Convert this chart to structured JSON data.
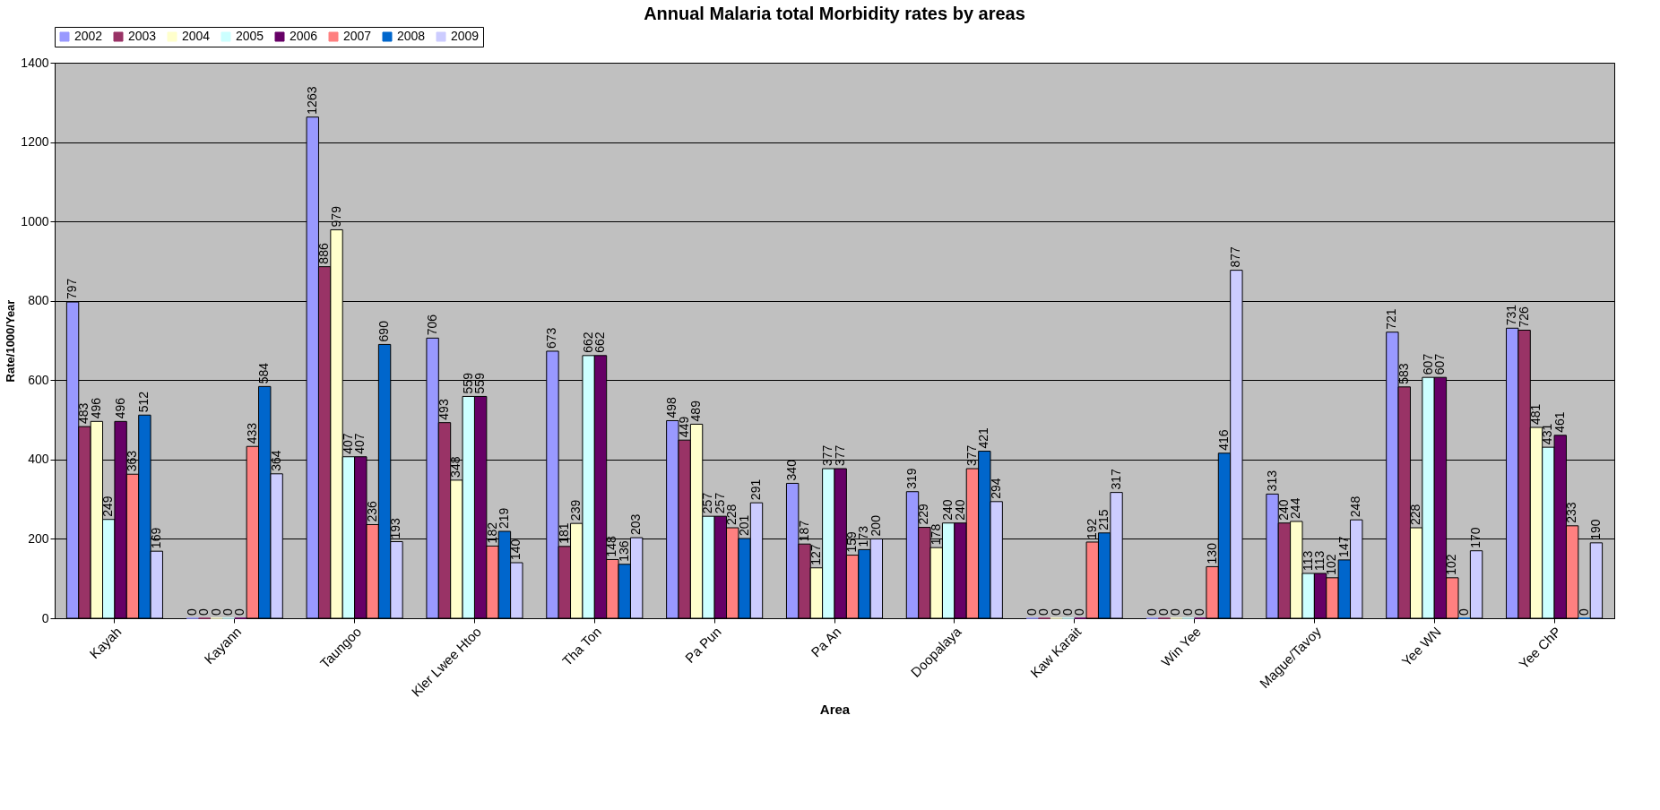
{
  "chart_data": {
    "type": "bar",
    "title": "Annual Malaria total Morbidity rates by areas",
    "xlabel": "Area",
    "ylabel": "Rate/1000/Year",
    "categories": [
      "Kayah",
      "Kayann",
      "Taungoo",
      "Kler Lwee Htoo",
      "Tha Ton",
      "Pa Pun",
      "Pa An",
      "Doopalaya",
      "Kaw Karait",
      "Win Yee",
      "Mague/Tavoy",
      "Yee WN",
      "Yee ChP"
    ],
    "series": [
      {
        "name": "2002",
        "color": "#9999ff",
        "values": [
          797,
          0,
          1263,
          706,
          673,
          498,
          340,
          319,
          0,
          0,
          313,
          721,
          731
        ]
      },
      {
        "name": "2003",
        "color": "#993366",
        "values": [
          483,
          0,
          886,
          493,
          181,
          449,
          187,
          229,
          0,
          0,
          240,
          583,
          726
        ]
      },
      {
        "name": "2004",
        "color": "#ffffcc",
        "values": [
          496,
          0,
          979,
          348,
          239,
          489,
          127,
          178,
          0,
          0,
          244,
          228,
          481
        ]
      },
      {
        "name": "2005",
        "color": "#ccffff",
        "values": [
          249,
          0,
          407,
          559,
          662,
          257,
          377,
          240,
          0,
          0,
          113,
          607,
          431
        ]
      },
      {
        "name": "2006",
        "color": "#660066",
        "values": [
          496,
          0,
          407,
          559,
          662,
          257,
          377,
          240,
          0,
          0,
          113,
          607,
          461
        ]
      },
      {
        "name": "2007",
        "color": "#ff8080",
        "values": [
          363,
          433,
          236,
          182,
          148,
          228,
          159,
          377,
          192,
          130,
          102,
          102,
          233
        ]
      },
      {
        "name": "2008",
        "color": "#0066cc",
        "values": [
          512,
          584,
          690,
          219,
          136,
          201,
          173,
          421,
          215,
          416,
          147,
          0,
          0
        ]
      },
      {
        "name": "2009",
        "color": "#ccccff",
        "values": [
          169,
          364,
          193,
          140,
          203,
          291,
          200,
          294,
          317,
          877,
          248,
          170,
          190
        ]
      }
    ],
    "ylim": [
      0,
      1400
    ],
    "yticks": [
      0,
      200,
      400,
      600,
      800,
      1000,
      1200,
      1400
    ],
    "grid": "y",
    "legend": "top",
    "data_labels": true
  }
}
